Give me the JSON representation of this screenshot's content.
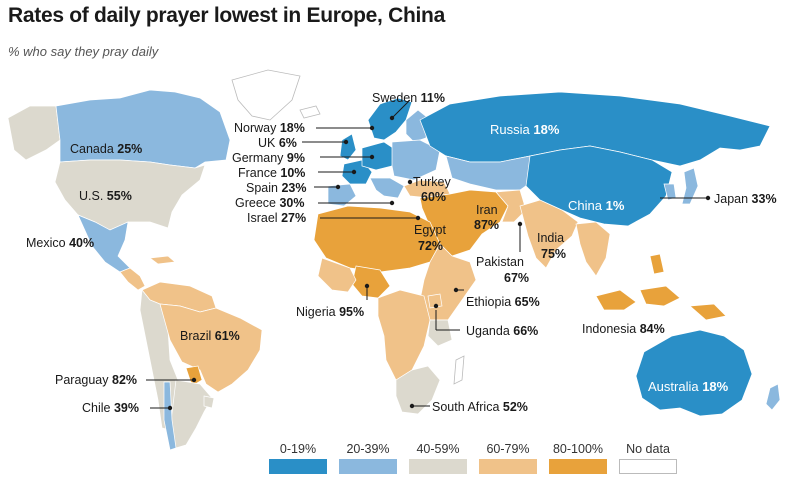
{
  "title": "Rates of daily prayer lowest in Europe, China",
  "subtitle": "% who say they pray daily",
  "colors": {
    "bin0": "#2a8fc7",
    "bin1": "#8bb8de",
    "bin2": "#dcd9ce",
    "bin3": "#f0c289",
    "bin4": "#e8a23b",
    "nodata": "#ffffff",
    "border": "#ffffff"
  },
  "legend": [
    {
      "label": "0-19%",
      "color": "#2a8fc7"
    },
    {
      "label": "20-39%",
      "color": "#8bb8de"
    },
    {
      "label": "40-59%",
      "color": "#dcd9ce"
    },
    {
      "label": "60-79%",
      "color": "#f0c289"
    },
    {
      "label": "80-100%",
      "color": "#e8a23b"
    },
    {
      "label": "No data",
      "color": "#ffffff"
    }
  ],
  "countries": {
    "canada": {
      "name": "Canada",
      "value": "25%"
    },
    "us": {
      "name": "U.S.",
      "value": "55%"
    },
    "mexico": {
      "name": "Mexico",
      "value": "40%"
    },
    "brazil": {
      "name": "Brazil",
      "value": "61%"
    },
    "paraguay": {
      "name": "Paraguay",
      "value": "82%"
    },
    "chile": {
      "name": "Chile",
      "value": "39%"
    },
    "sweden": {
      "name": "Sweden",
      "value": "11%"
    },
    "norway": {
      "name": "Norway",
      "value": "18%"
    },
    "uk": {
      "name": "UK",
      "value": "6%"
    },
    "germany": {
      "name": "Germany",
      "value": "9%"
    },
    "france": {
      "name": "France",
      "value": "10%"
    },
    "spain": {
      "name": "Spain",
      "value": "23%"
    },
    "greece": {
      "name": "Greece",
      "value": "30%"
    },
    "israel": {
      "name": "Israel",
      "value": "27%"
    },
    "russia": {
      "name": "Russia",
      "value": "18%"
    },
    "china": {
      "name": "China",
      "value": "1%"
    },
    "japan": {
      "name": "Japan",
      "value": "33%"
    },
    "turkey": {
      "name": "Turkey",
      "value": "60%"
    },
    "iran": {
      "name": "Iran",
      "value": "87%"
    },
    "egypt": {
      "name": "Egypt",
      "value": "72%"
    },
    "india": {
      "name": "India",
      "value": "75%"
    },
    "pakistan": {
      "name": "Pakistan",
      "value": "67%"
    },
    "nigeria": {
      "name": "Nigeria",
      "value": "95%"
    },
    "ethiopia": {
      "name": "Ethiopia",
      "value": "65%"
    },
    "uganda": {
      "name": "Uganda",
      "value": "66%"
    },
    "indonesia": {
      "name": "Indonesia",
      "value": "84%"
    },
    "australia": {
      "name": "Australia",
      "value": "18%"
    },
    "south_africa": {
      "name": "South Africa",
      "value": "52%"
    }
  }
}
